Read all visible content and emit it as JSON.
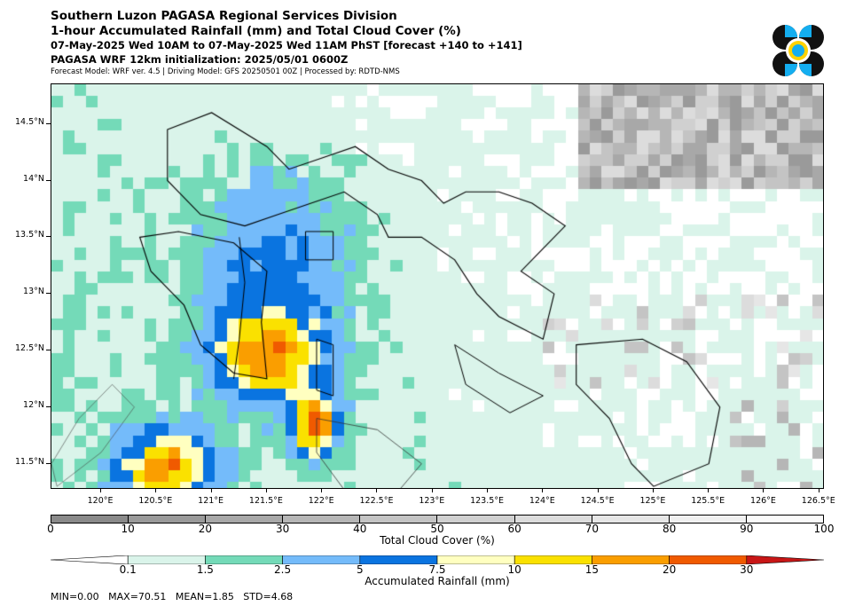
{
  "header": {
    "title": "Southern Luzon PAGASA Regional Services Division",
    "subtitle": "1-hour Accumulated Rainfall (mm) and Total Cloud Cover (%)",
    "valid_time": "07-May-2025 Wed 10AM to 07-May-2025 Wed 11AM PhST [forecast +140 to +141]",
    "initialization": "PAGASA WRF 12km initialization: 2025/05/01 0600Z",
    "model_info": "Forecast Model: WRF ver. 4.5 | Driving Model: GFS 20250501 00Z | Processed by: RDTD-NMS"
  },
  "map": {
    "lon_labels": [
      "120°E",
      "120.5°E",
      "121°E",
      "121.5°E",
      "122°E",
      "122.5°E",
      "123°E",
      "123.5°E",
      "124°E",
      "124.5°E",
      "125°E",
      "125.5°E",
      "126°E",
      "126.5°E"
    ],
    "lon_values": [
      120,
      120.5,
      121,
      121.5,
      122,
      122.5,
      123,
      123.5,
      124,
      124.5,
      125,
      125.5,
      126,
      126.5
    ],
    "lat_labels": [
      "14.5°N",
      "14°N",
      "13.5°N",
      "13°N",
      "12.5°N",
      "12°N",
      "11.5°N"
    ],
    "lat_values": [
      14.5,
      14,
      13.5,
      13,
      12.5,
      12,
      11.5
    ],
    "lon_range": [
      119.55,
      126.55
    ],
    "lat_range": [
      11.27,
      14.85
    ]
  },
  "cloud_colorbar": {
    "label": "Total Cloud Cover (%)",
    "ticks": [
      "0",
      "10",
      "20",
      "30",
      "40",
      "50",
      "60",
      "70",
      "80",
      "90",
      "100"
    ],
    "colors": [
      "#8a8a8a",
      "#9a9a9a",
      "#a8a8a8",
      "#b6b6b6",
      "#c4c4c4",
      "#d0d0d0",
      "#dcdcdc",
      "#e6e6e6",
      "#f0f0f0",
      "#fafafa"
    ]
  },
  "rain_colorbar": {
    "label": "Accumulated Rainfall (mm)",
    "ticks": [
      "0.1",
      "1.5",
      "2.5",
      "5",
      "7.5",
      "10",
      "15",
      "20",
      "30"
    ],
    "colors": [
      "#ffffff",
      "#daf4ea",
      "#74dab8",
      "#74bbfa",
      "#0a74e0",
      "#ffffc0",
      "#fae100",
      "#fa9e00",
      "#f05a00",
      "#c81616"
    ]
  },
  "stats": "MIN=0.00   MAX=70.51   MEAN=1.85   STD=4.68"
}
